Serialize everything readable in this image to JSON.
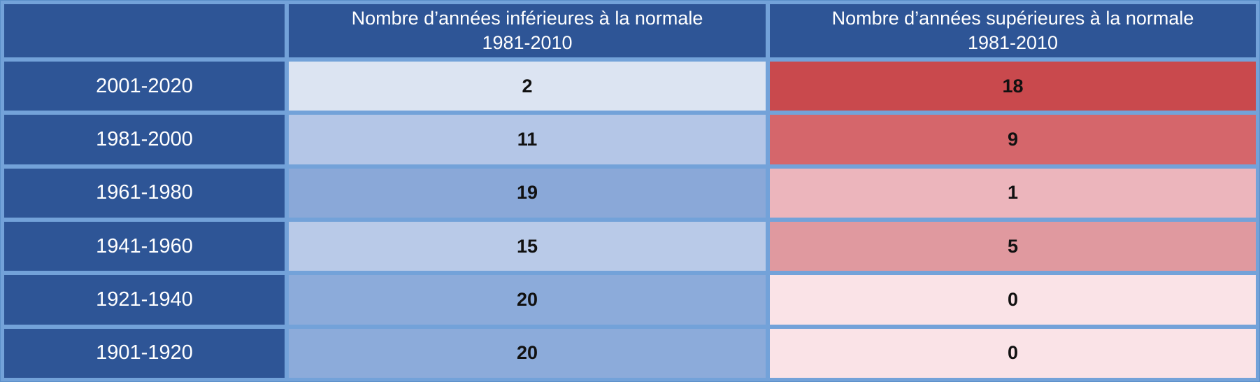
{
  "colors": {
    "dark_blue_bg": "#2E5596",
    "grid_border_blue": "#73A2D9",
    "header_text": "#FFFFFF",
    "value_text": "#111111"
  },
  "table": {
    "corner_label": "",
    "columns": [
      {
        "title": "Nombre d’années inférieures à la normale",
        "subtitle": "1981-2010"
      },
      {
        "title": "Nombre d’années supérieures à la normale",
        "subtitle": "1981-2010"
      }
    ],
    "rows": [
      {
        "period": "2001-2020",
        "below": "2",
        "above": "18",
        "below_bg": "#DCE4F2",
        "above_bg": "#C9494D"
      },
      {
        "period": "1981-2000",
        "below": "11",
        "above": "9",
        "below_bg": "#B4C6E7",
        "above_bg": "#D5666B"
      },
      {
        "period": "1961-1980",
        "below": "19",
        "above": "1",
        "below_bg": "#8AA8D8",
        "above_bg": "#ECB5BC"
      },
      {
        "period": "1941-1960",
        "below": "15",
        "above": "5",
        "below_bg": "#B9CAE8",
        "above_bg": "#E0999F"
      },
      {
        "period": "1921-1940",
        "below": "20",
        "above": "0",
        "below_bg": "#8CABDA",
        "above_bg": "#FAE3E7"
      },
      {
        "period": "1901-1920",
        "below": "20",
        "above": "0",
        "below_bg": "#8CABDA",
        "above_bg": "#FAE3E7"
      }
    ]
  },
  "chart_data": {
    "type": "table",
    "columns": [
      "",
      "Nombre d’années inférieures à la normale 1981-2010",
      "Nombre d’années supérieures à la normale 1981-2010"
    ],
    "rows": [
      [
        "2001-2020",
        2,
        18
      ],
      [
        "1981-2000",
        11,
        9
      ],
      [
        "1961-1980",
        19,
        1
      ],
      [
        "1941-1960",
        15,
        5
      ],
      [
        "1921-1940",
        20,
        0
      ],
      [
        "1901-1920",
        20,
        0
      ]
    ],
    "layout_hints": {
      "heatmap": "blue shade intensity tracks below-normal counts, red shade intensity tracks above-normal counts",
      "header_and_period_cells_bg": "#2E5596",
      "grid_color": "#73A2D9"
    }
  }
}
